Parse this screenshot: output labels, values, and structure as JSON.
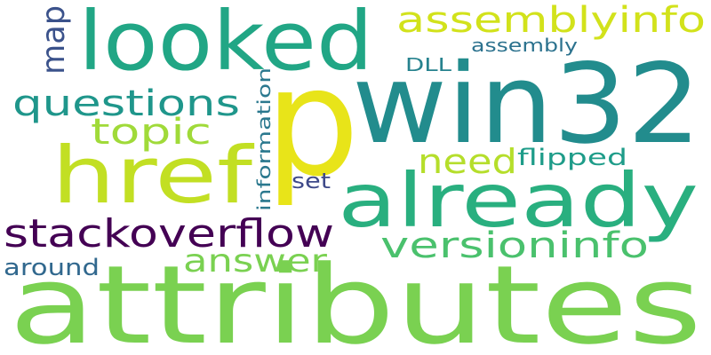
{
  "word_cloud": {
    "background": "#ffffff",
    "words": [
      {
        "text": "attributes",
        "color": "#7ad151"
      },
      {
        "text": "p",
        "color": "#e8e419"
      },
      {
        "text": "win32",
        "color": "#228c8d"
      },
      {
        "text": "already",
        "color": "#29af7f"
      },
      {
        "text": "looked",
        "color": "#21a685"
      },
      {
        "text": "href",
        "color": "#c2df23"
      },
      {
        "text": "stackoverflow",
        "color": "#440154"
      },
      {
        "text": "assemblyinfo",
        "color": "#d2e21b"
      },
      {
        "text": "questions",
        "color": "#1f968b"
      },
      {
        "text": "versioninfo",
        "color": "#4ac16d"
      },
      {
        "text": "topic",
        "color": "#a0da39"
      },
      {
        "text": "answer",
        "color": "#7ad151"
      },
      {
        "text": "need",
        "color": "#b5de2b"
      },
      {
        "text": "map",
        "color": "#3b528b"
      },
      {
        "text": "flipped",
        "color": "#1e9c89"
      },
      {
        "text": "around",
        "color": "#31688e"
      },
      {
        "text": "information",
        "color": "#2a788e"
      },
      {
        "text": "set",
        "color": "#3e4989"
      },
      {
        "text": "DLL",
        "color": "#26828e"
      },
      {
        "text": "assembly",
        "color": "#2c728e"
      }
    ]
  }
}
